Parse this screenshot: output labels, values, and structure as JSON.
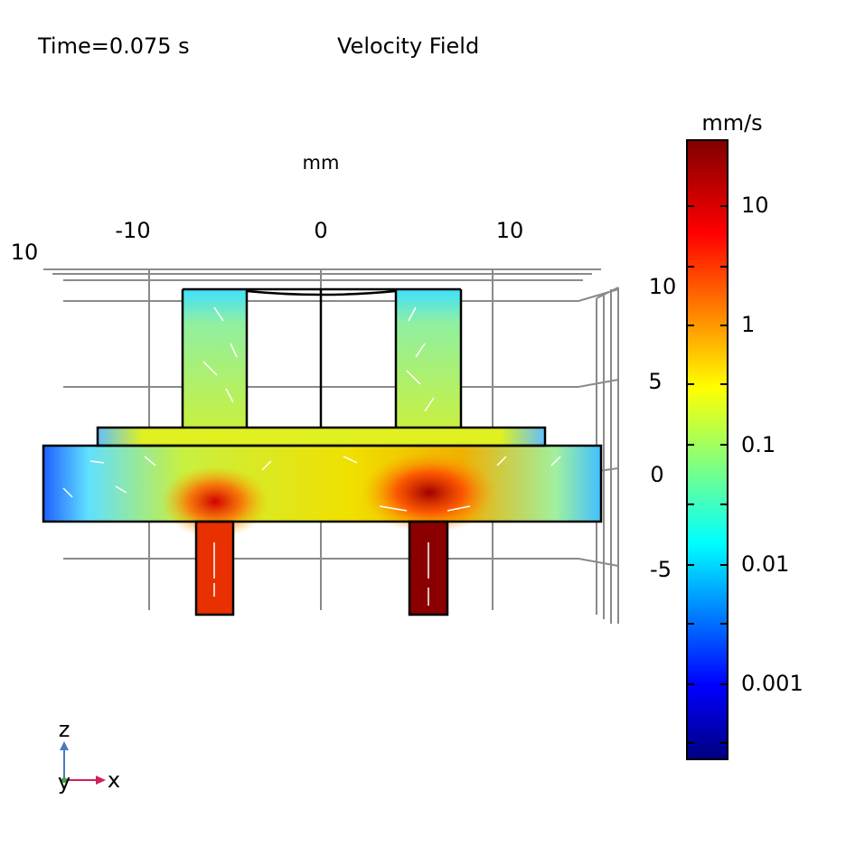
{
  "header": {
    "time": "Time=0.075 s",
    "title": "Velocity Field"
  },
  "axes": {
    "unit": "mm",
    "x_ticks": [
      "-10",
      "0",
      "10"
    ],
    "y_tick": "10",
    "z_ticks": [
      "10",
      "5",
      "0",
      "-5"
    ]
  },
  "colorbar": {
    "unit": "mm/s",
    "labels": [
      "10",
      "1",
      "0.1",
      "0.01",
      "0.001"
    ]
  },
  "triad": {
    "z": "z",
    "y": "y",
    "x": "x"
  }
}
